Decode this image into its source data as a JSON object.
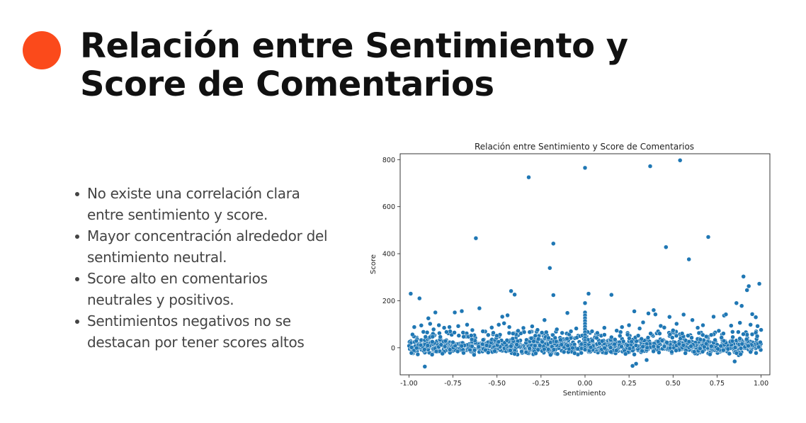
{
  "slide": {
    "title": "Relación entre Sentimiento y Score de Comentarios",
    "bullets": [
      "No existe una correlación clara entre sentimiento y score.",
      "Mayor concentración alrededor del sentimiento neutral.",
      "Score alto en comentarios neutrales y positivos.",
      "Sentimientos negativos no se destacan por tener scores altos"
    ],
    "accent_color": "#fb4a1b"
  },
  "chart_data": {
    "type": "scatter",
    "title": "Relación entre Sentimiento y Score de Comentarios",
    "xlabel": "Sentimiento",
    "ylabel": "Score",
    "xlim": [
      -1.05,
      1.05
    ],
    "ylim": [
      -115,
      825
    ],
    "xticks": [
      "-1.00",
      "-0.75",
      "-0.50",
      "-0.25",
      "0.00",
      "0.25",
      "0.50",
      "0.75",
      "1.00"
    ],
    "yticks": [
      "0",
      "200",
      "400",
      "600",
      "800"
    ],
    "grid": false,
    "legend": "none",
    "point_color": "#1f77b4",
    "points": [
      [
        -0.32,
        725
      ],
      [
        0.0,
        765
      ],
      [
        0.37,
        772
      ],
      [
        0.54,
        797
      ],
      [
        -0.62,
        466
      ],
      [
        0.7,
        471
      ],
      [
        -0.18,
        443
      ],
      [
        0.46,
        428
      ],
      [
        0.59,
        376
      ],
      [
        -0.2,
        339
      ],
      [
        0.9,
        303
      ],
      [
        -0.99,
        230
      ],
      [
        0.02,
        230
      ],
      [
        0.15,
        225
      ],
      [
        -0.42,
        241
      ],
      [
        -0.4,
        226
      ],
      [
        0.92,
        245
      ],
      [
        0.93,
        262
      ],
      [
        -0.18,
        224
      ],
      [
        -0.94,
        210
      ],
      [
        0.99,
        272
      ],
      [
        -0.6,
        168
      ],
      [
        -0.7,
        156
      ],
      [
        -0.85,
        150
      ],
      [
        -0.47,
        132
      ],
      [
        -0.44,
        138
      ],
      [
        -0.1,
        148
      ],
      [
        0.28,
        155
      ],
      [
        0.36,
        146
      ],
      [
        0.39,
        160
      ],
      [
        0.4,
        142
      ],
      [
        0.56,
        141
      ],
      [
        0.61,
        118
      ],
      [
        0.73,
        132
      ],
      [
        0.79,
        137
      ],
      [
        0.8,
        142
      ],
      [
        0.86,
        190
      ],
      [
        0.89,
        178
      ],
      [
        0.95,
        143
      ],
      [
        0.97,
        130
      ],
      [
        -0.89,
        125
      ],
      [
        -0.74,
        150
      ],
      [
        -0.23,
        118
      ],
      [
        0.0,
        190
      ],
      [
        0.33,
        108
      ],
      [
        0.48,
        131
      ],
      [
        -0.91,
        -80
      ],
      [
        0.27,
        -77
      ],
      [
        0.29,
        -68
      ],
      [
        0.35,
        -52
      ],
      [
        0.85,
        -58
      ],
      [
        -0.97,
        88
      ],
      [
        -0.93,
        95
      ],
      [
        -0.88,
        102
      ],
      [
        -0.86,
        78
      ],
      [
        -0.83,
        96
      ],
      [
        -0.8,
        85
      ],
      [
        -0.77,
        88
      ],
      [
        -0.72,
        92
      ],
      [
        -0.67,
        98
      ],
      [
        -0.64,
        75
      ],
      [
        -0.58,
        70
      ],
      [
        -0.53,
        86
      ],
      [
        -0.49,
        98
      ],
      [
        -0.46,
        104
      ],
      [
        -0.43,
        88
      ],
      [
        -0.38,
        72
      ],
      [
        -0.35,
        84
      ],
      [
        -0.3,
        91
      ],
      [
        -0.27,
        76
      ],
      [
        -0.22,
        66
      ],
      [
        -0.16,
        78
      ],
      [
        -0.13,
        63
      ],
      [
        -0.08,
        70
      ],
      [
        -0.05,
        82
      ],
      [
        0.04,
        70
      ],
      [
        0.07,
        63
      ],
      [
        0.11,
        85
      ],
      [
        0.18,
        73
      ],
      [
        0.21,
        88
      ],
      [
        0.25,
        96
      ],
      [
        0.31,
        82
      ],
      [
        0.43,
        93
      ],
      [
        0.45,
        86
      ],
      [
        0.5,
        74
      ],
      [
        0.52,
        102
      ],
      [
        0.64,
        85
      ],
      [
        0.67,
        96
      ],
      [
        0.76,
        72
      ],
      [
        0.83,
        94
      ],
      [
        0.88,
        106
      ],
      [
        0.94,
        98
      ],
      [
        0.98,
        92
      ],
      [
        1.0,
        76
      ],
      [
        -0.95,
        -28
      ],
      [
        -0.81,
        -25
      ],
      [
        -0.69,
        -22
      ],
      [
        -0.55,
        -20
      ],
      [
        -0.4,
        -26
      ],
      [
        -0.28,
        -24
      ],
      [
        -0.12,
        -18
      ],
      [
        0.12,
        -22
      ],
      [
        0.23,
        -26
      ],
      [
        0.42,
        -20
      ],
      [
        0.57,
        -23
      ],
      [
        0.71,
        -28
      ],
      [
        0.82,
        -25
      ],
      [
        0.94,
        -18
      ],
      [
        -0.63,
        -30
      ],
      [
        -0.36,
        -16
      ],
      [
        0.62,
        -17
      ],
      [
        0.0,
        150
      ],
      [
        0.0,
        138
      ],
      [
        0.0,
        126
      ],
      [
        0.0,
        114
      ],
      [
        0.0,
        102
      ],
      [
        0.0,
        90
      ],
      [
        0.0,
        78
      ],
      [
        0.0,
        66
      ],
      [
        0.0,
        54
      ],
      [
        0.0,
        42
      ],
      [
        0.0,
        30
      ],
      [
        0.0,
        20
      ],
      [
        0.0,
        10
      ],
      [
        0.0,
        0
      ],
      [
        0.0,
        -8
      ]
    ]
  }
}
